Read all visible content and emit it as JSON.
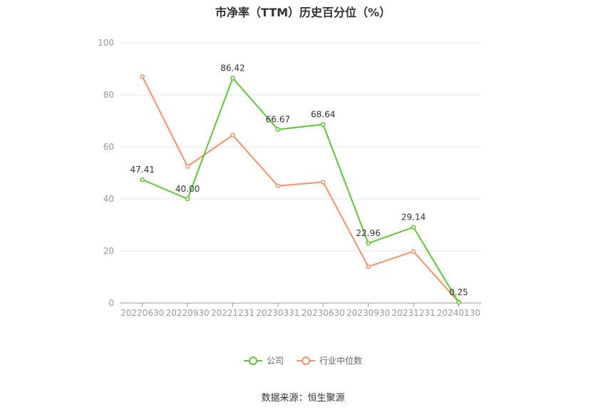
{
  "chart_data": {
    "type": "line",
    "title": "市净率（TTM）历史百分位（%）",
    "categories": [
      "20220630",
      "20220930",
      "20221231",
      "20230331",
      "20230630",
      "20230930",
      "20231231",
      "20240130"
    ],
    "yticks": [
      "0",
      "20",
      "40",
      "60",
      "80",
      "100"
    ],
    "ylim": [
      0,
      100
    ],
    "grid": true,
    "legend_position": "bottom",
    "series": [
      {
        "name": "公司",
        "color": "#5ec738",
        "values": [
          47.41,
          40.0,
          86.42,
          66.67,
          68.64,
          22.96,
          29.14,
          0.25
        ],
        "labels": [
          "47.41",
          "40.00",
          "86.42",
          "66.67",
          "68.64",
          "22.96",
          "29.14",
          "0.25"
        ]
      },
      {
        "name": "行业中位数",
        "color": "#f2916a",
        "values": [
          87,
          52.5,
          64.5,
          45,
          46.5,
          14,
          19.8,
          0.4
        ]
      }
    ]
  },
  "source": "数据来源：恒生聚源"
}
